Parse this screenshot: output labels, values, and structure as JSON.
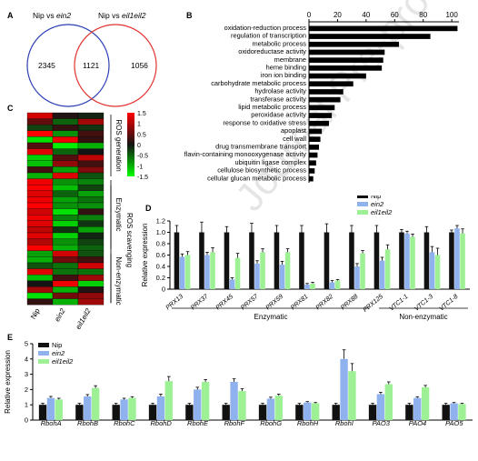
{
  "panels": {
    "a": "A",
    "b": "B",
    "c": "C",
    "d": "D",
    "e": "E"
  },
  "watermark": "Journal Pre-proof",
  "venn": {
    "left_title": "Nip vs ",
    "left_title_italic": "ein2",
    "right_title": "Nip vs ",
    "right_title_italic": "eil1eil2",
    "left_only": "2345",
    "overlap": "1121",
    "right_only": "1056",
    "left_color": "#2d3fb5",
    "right_color": "#e0312f"
  },
  "chart_data": [
    {
      "panel": "B",
      "type": "bar",
      "orientation": "horizontal",
      "categories": [
        "oxidation-reduction process",
        "regulation of transcription",
        "metabolic process",
        "oxidoreductase activity",
        "membrane",
        "heme binding",
        "iron ion binding",
        "carbohydrate metabolic process",
        "hydrolase activity",
        "transferase activity",
        "lipid metabolic process",
        "peroxidase activity",
        "response to oxidative stress",
        "apoplast",
        "cell wall",
        "drug transmembrane transport",
        "flavin-containing monooxygenase activity",
        "ubiquitin ligase complex",
        "cellulose biosynthetic process",
        "cellular glucan metabolic process"
      ],
      "values": [
        104,
        85,
        63,
        53,
        52,
        51,
        40,
        31,
        24,
        22,
        18,
        16,
        14,
        9,
        8,
        7,
        6,
        5,
        4,
        3
      ],
      "xlim": [
        0,
        105
      ],
      "xticks": [
        "0",
        "20",
        "40",
        "60",
        "80",
        "100"
      ]
    },
    {
      "panel": "D",
      "type": "bar",
      "ylabel": "Relative expression",
      "ylim": [
        0,
        1.2
      ],
      "yticks": [
        "0",
        "0.2",
        "0.4",
        "0.6",
        "0.8",
        "1.0",
        "1.2"
      ],
      "categories": [
        "PRX13",
        "PRX37",
        "PRX45",
        "PRX57",
        "PRX59",
        "PRX81",
        "PRX82",
        "PRX88",
        "PRX125",
        "VTC1-1",
        "VTC1-3",
        "VTC1-8"
      ],
      "series": [
        {
          "name": "Nip",
          "color": "#111111",
          "values": [
            1.0,
            1.0,
            1.0,
            1.0,
            1.0,
            1.0,
            1.0,
            1.0,
            1.0,
            1.0,
            1.0,
            1.0
          ]
        },
        {
          "name": "ein2",
          "color": "#8fb2ee",
          "values": [
            0.57,
            0.6,
            0.17,
            0.45,
            0.43,
            0.08,
            0.12,
            0.4,
            0.5,
            0.98,
            0.65,
            1.07
          ]
        },
        {
          "name": "eil1eil2",
          "color": "#9ef095",
          "values": [
            0.6,
            0.65,
            0.55,
            0.65,
            0.65,
            0.1,
            0.15,
            0.63,
            0.7,
            0.92,
            0.6,
            0.98
          ]
        }
      ],
      "errors": [
        [
          0.12,
          0.18,
          0.1,
          0.16,
          0.12,
          0.12,
          0.15,
          0.12,
          0.12,
          0.05,
          0.1,
          0.04
        ],
        [
          0.05,
          0.05,
          0.03,
          0.05,
          0.06,
          0.02,
          0.03,
          0.05,
          0.06,
          0.04,
          0.1,
          0.05
        ],
        [
          0.06,
          0.08,
          0.08,
          0.06,
          0.06,
          0.02,
          0.02,
          0.05,
          0.08,
          0.05,
          0.12,
          0.08
        ]
      ],
      "group_labels": [
        "Enzymatic",
        "Non-enzymatic"
      ]
    },
    {
      "panel": "E",
      "type": "bar",
      "ylabel": "Relative expression",
      "ylim": [
        0,
        5
      ],
      "yticks": [
        "0",
        "1",
        "2",
        "3",
        "4",
        "5"
      ],
      "categories": [
        "RbohA",
        "RbohB",
        "RbohC",
        "RbohD",
        "RbohE",
        "RbohF",
        "RbohG",
        "RbohH",
        "RbohI",
        "PAO3",
        "PAO4",
        "PAO5"
      ],
      "series": [
        {
          "name": "Nip",
          "color": "#111111",
          "values": [
            1,
            1,
            1,
            1,
            1,
            1,
            1,
            1,
            1,
            1,
            1,
            1
          ]
        },
        {
          "name": "ein2",
          "color": "#8fb2ee",
          "values": [
            1.45,
            1.55,
            1.35,
            1.55,
            2.0,
            2.5,
            1.4,
            1.15,
            4.0,
            1.7,
            1.45,
            1.1
          ]
        },
        {
          "name": "eil1eil2",
          "color": "#9ef095",
          "values": [
            1.35,
            2.1,
            1.45,
            2.55,
            2.5,
            1.9,
            1.6,
            1.1,
            3.2,
            2.35,
            2.15,
            1.05
          ]
        }
      ],
      "errors": [
        [
          0.1,
          0.1,
          0.1,
          0.1,
          0.1,
          0.1,
          0.1,
          0.1,
          0.1,
          0.1,
          0.1,
          0.1
        ],
        [
          0.1,
          0.12,
          0.08,
          0.15,
          0.15,
          0.2,
          0.1,
          0.06,
          0.6,
          0.12,
          0.08,
          0.05
        ],
        [
          0.08,
          0.15,
          0.08,
          0.3,
          0.15,
          0.15,
          0.1,
          0.05,
          0.5,
          0.15,
          0.12,
          0.05
        ]
      ]
    }
  ],
  "heatmap": {
    "columns": [
      "Nip",
      "ein2",
      "eil1eil2"
    ],
    "legend_ticks": [
      "1.5",
      "1",
      "0.5",
      "0",
      "-0.5",
      "-1",
      "-1.5"
    ],
    "group_labels": [
      "ROS generation",
      "ROS scavenging",
      "Enzymatic",
      "Non-enzymatic"
    ],
    "rows": [
      [
        1.2,
        0.1,
        -0.1
      ],
      [
        0.5,
        -0.5,
        0.9
      ],
      [
        -0.3,
        0.2,
        -0.2
      ],
      [
        1.5,
        -0.8,
        0.3
      ],
      [
        -1.3,
        1.4,
        0.2
      ],
      [
        0.4,
        -1.4,
        -1.0
      ],
      [
        1.3,
        -0.5,
        0.0
      ],
      [
        -1.2,
        0.4,
        1.1
      ],
      [
        -1.1,
        0.8,
        0.3
      ],
      [
        0.3,
        -0.9,
        0.7
      ],
      [
        -1.0,
        1.3,
        -0.4
      ],
      [
        1.4,
        -0.8,
        -0.7
      ],
      [
        1.5,
        -1.1,
        -0.3
      ],
      [
        1.3,
        -0.5,
        -0.9
      ],
      [
        1.4,
        -0.9,
        -0.6
      ],
      [
        1.5,
        -0.8,
        -0.8
      ],
      [
        1.2,
        -1.3,
        0.2
      ],
      [
        1.4,
        -0.7,
        -0.7
      ],
      [
        1.3,
        -1.2,
        -0.2
      ],
      [
        1.1,
        -0.2,
        -0.9
      ],
      [
        1.3,
        -1.2,
        -0.1
      ],
      [
        1.0,
        -0.8,
        -0.3
      ],
      [
        1.5,
        -1.0,
        -0.5
      ],
      [
        -0.9,
        1.2,
        -0.4
      ],
      [
        -1.0,
        0.6,
        0.3
      ],
      [
        -0.4,
        -0.6,
        1.2
      ],
      [
        1.3,
        -0.6,
        -0.6
      ],
      [
        -1.1,
        0.3,
        0.9
      ],
      [
        0.0,
        1.4,
        -1.2
      ],
      [
        0.9,
        -1.0,
        0.1
      ],
      [
        -1.3,
        0.6,
        0.8
      ],
      [
        0.2,
        -1.0,
        0.9
      ]
    ]
  }
}
